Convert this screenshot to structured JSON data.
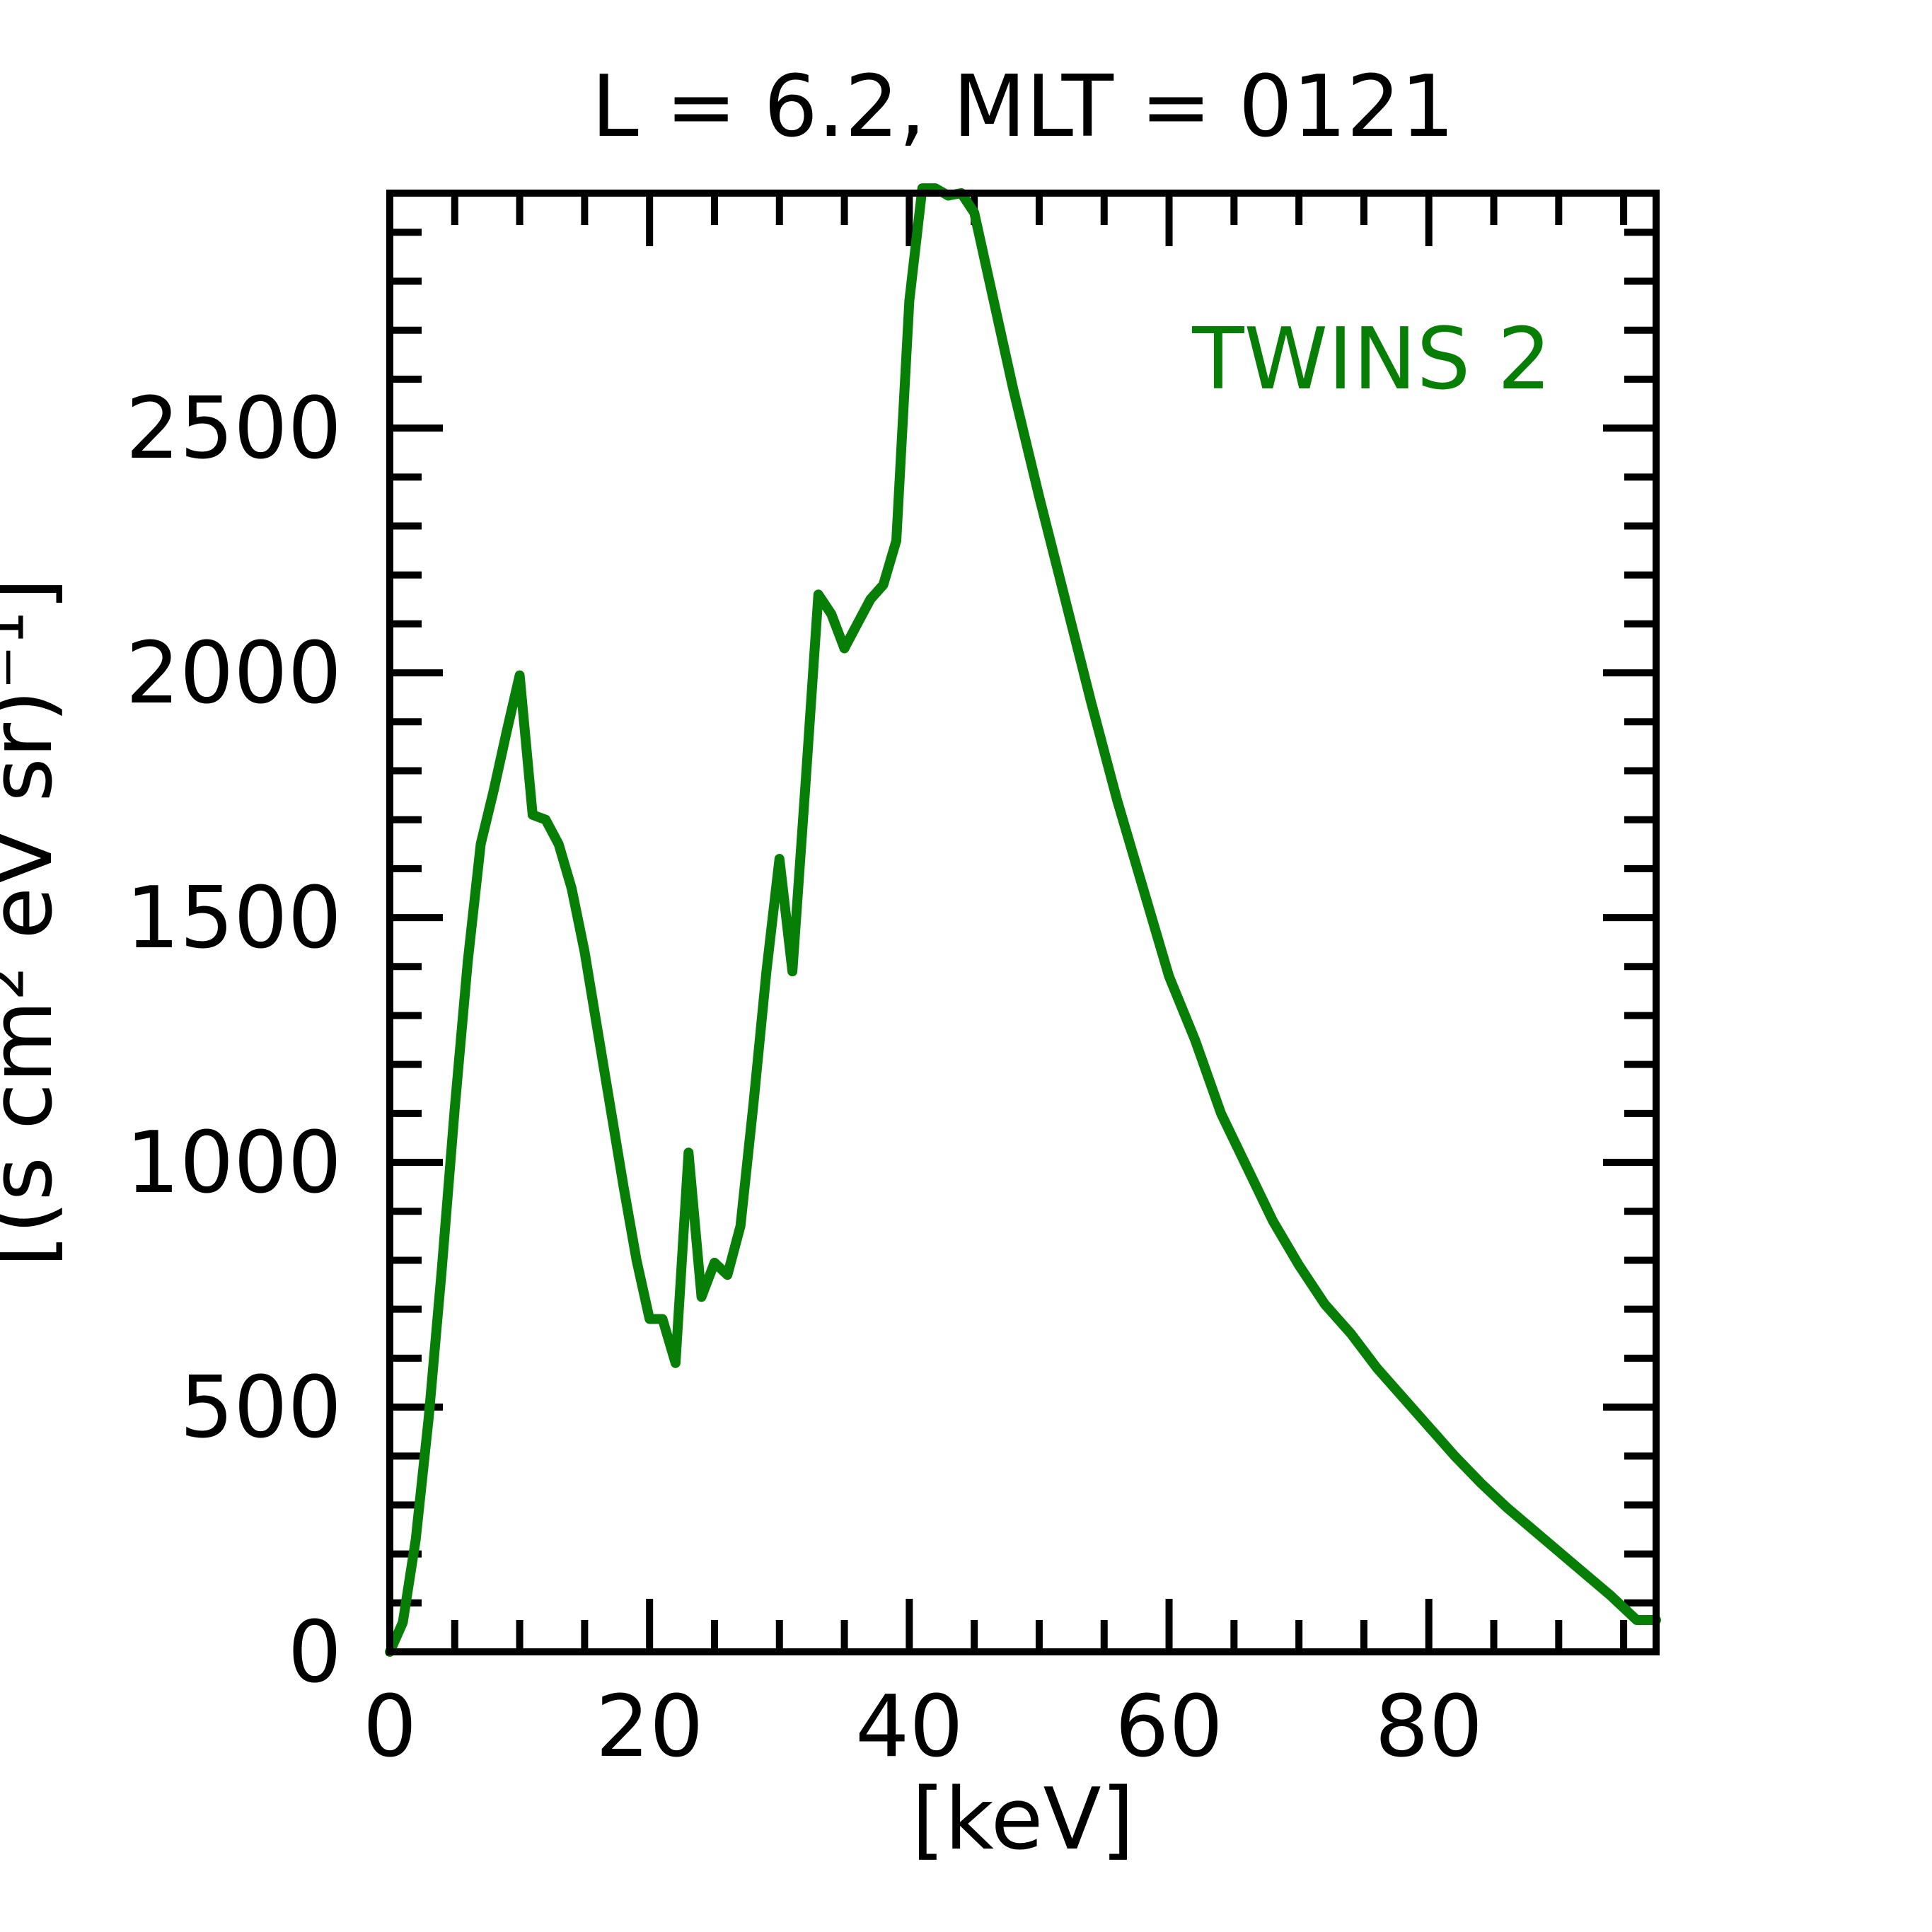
{
  "chart_data": {
    "type": "line",
    "title": "L =  6.2, MLT = 0121",
    "xlabel": "[keV]",
    "ylabel": "[(s cm² eV sr)⁻¹]",
    "xlim": [
      0,
      97.5
    ],
    "ylim": [
      0,
      2980
    ],
    "x_ticks": [
      0,
      20,
      40,
      60,
      80
    ],
    "y_ticks": [
      0,
      500,
      1000,
      1500,
      2000,
      2500
    ],
    "x_minor_step": 5,
    "y_minor_step": 100,
    "grid": false,
    "legend_position": "top-right",
    "colors": {
      "series": "#077f07",
      "axes": "#000000"
    },
    "series": [
      {
        "name": "TWINS 2",
        "x": [
          0,
          1,
          2,
          3,
          4,
          5,
          6,
          7,
          8,
          9,
          10,
          11,
          12,
          13,
          14,
          15,
          16,
          17,
          18,
          19,
          20,
          21,
          22,
          23,
          24,
          25,
          26,
          27,
          28,
          29,
          30,
          31,
          32,
          33,
          34,
          35,
          36,
          37,
          38,
          39,
          40,
          41,
          42,
          43,
          44,
          45,
          46,
          48,
          50,
          52,
          54,
          56,
          58,
          60,
          62,
          64,
          66,
          68,
          70,
          72,
          74,
          76,
          78,
          80,
          82,
          84,
          86,
          88,
          90,
          92,
          94,
          96,
          97.5
        ],
        "y": [
          0,
          60,
          230,
          480,
          780,
          1110,
          1410,
          1650,
          1760,
          1880,
          1995,
          1710,
          1700,
          1650,
          1560,
          1430,
          1270,
          1110,
          950,
          800,
          680,
          680,
          590,
          1020,
          725,
          795,
          770,
          870,
          1120,
          1390,
          1620,
          1390,
          1770,
          2160,
          2120,
          2050,
          2100,
          2150,
          2180,
          2270,
          2760,
          2990,
          2990,
          2975,
          2980,
          2940,
          2820,
          2580,
          2360,
          2150,
          1940,
          1740,
          1560,
          1380,
          1250,
          1100,
          990,
          880,
          790,
          710,
          650,
          580,
          520,
          460,
          400,
          345,
          295,
          250,
          205,
          160,
          115,
          65,
          65
        ]
      }
    ]
  }
}
